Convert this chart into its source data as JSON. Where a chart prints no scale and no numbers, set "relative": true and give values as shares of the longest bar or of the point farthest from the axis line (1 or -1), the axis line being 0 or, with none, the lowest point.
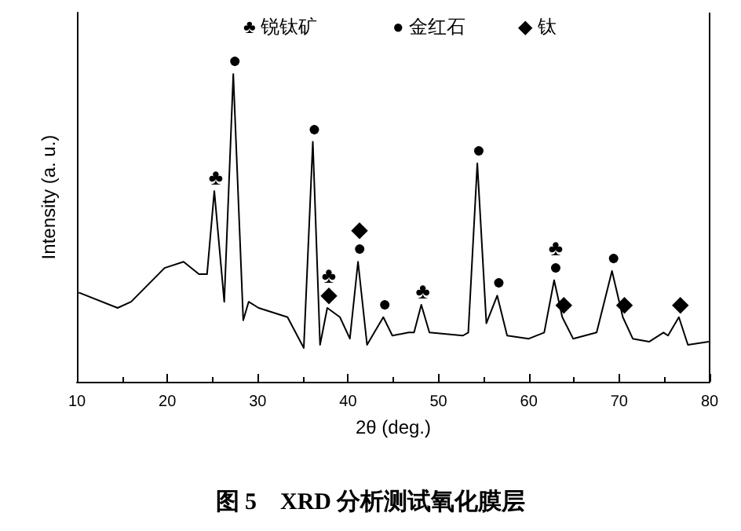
{
  "chart_data": {
    "type": "line",
    "relative": true,
    "xlabel": "2θ (deg.)",
    "ylabel": "Intensity (a. u.)",
    "color": "#000000",
    "xlim": [
      10,
      80
    ],
    "xticks": [
      10,
      20,
      30,
      40,
      50,
      60,
      70,
      80
    ],
    "grid": false,
    "marker": "none",
    "line_style": "solid",
    "x": [
      10.2,
      14.5,
      16.0,
      19.7,
      21.8,
      23.5,
      24.4,
      25.2,
      26.3,
      27.3,
      28.4,
      29.0,
      30.1,
      33.3,
      35.1,
      36.1,
      36.9,
      37.7,
      39.1,
      40.2,
      41.1,
      42.1,
      42.9,
      43.9,
      44.9,
      46.7,
      47.3,
      48.1,
      49.0,
      52.7,
      53.3,
      54.3,
      55.3,
      56.5,
      57.6,
      60.0,
      61.7,
      62.8,
      63.7,
      64.9,
      67.5,
      69.2,
      70.4,
      71.5,
      73.3,
      74.9,
      75.4,
      76.6,
      77.6,
      79.9
    ],
    "values": [
      0.29,
      0.24,
      0.26,
      0.37,
      0.39,
      0.35,
      0.35,
      0.62,
      0.26,
      1.0,
      0.2,
      0.26,
      0.24,
      0.21,
      0.11,
      0.78,
      0.12,
      0.24,
      0.21,
      0.14,
      0.39,
      0.12,
      0.16,
      0.21,
      0.15,
      0.16,
      0.16,
      0.25,
      0.16,
      0.15,
      0.16,
      0.71,
      0.19,
      0.28,
      0.15,
      0.14,
      0.16,
      0.33,
      0.21,
      0.14,
      0.16,
      0.36,
      0.21,
      0.14,
      0.13,
      0.16,
      0.15,
      0.21,
      0.12,
      0.13
    ],
    "annotations": [
      "♣ 锐钛矿",
      "● 金红石",
      "◆ 钛",
      "图 5　XRD 分析测试氧化膜层",
      {
        "text": "♣",
        "x": 25.2,
        "y": 0.62
      },
      {
        "text": "●",
        "x": 27.3,
        "y": 1.0
      },
      {
        "text": "●",
        "x": 36.1,
        "y": 0.78
      },
      {
        "text": "◆",
        "x": 37.7,
        "y": 0.24
      },
      {
        "text": "♣",
        "x": 37.7,
        "y": 0.24
      },
      {
        "text": "●",
        "x": 41.1,
        "y": 0.39
      },
      {
        "text": "◆",
        "x": 41.1,
        "y": 0.39
      },
      {
        "text": "●",
        "x": 43.9,
        "y": 0.21
      },
      {
        "text": "♣",
        "x": 48.1,
        "y": 0.25
      },
      {
        "text": "●",
        "x": 54.3,
        "y": 0.71
      },
      {
        "text": "●",
        "x": 56.5,
        "y": 0.28
      },
      {
        "text": "●",
        "x": 62.8,
        "y": 0.33
      },
      {
        "text": "♣",
        "x": 62.8,
        "y": 0.33
      },
      {
        "text": "◆",
        "x": 63.7,
        "y": 0.21
      },
      {
        "text": "●",
        "x": 69.2,
        "y": 0.36
      },
      {
        "text": "◆",
        "x": 70.4,
        "y": 0.21
      },
      {
        "text": "◆",
        "x": 76.6,
        "y": 0.21
      }
    ]
  }
}
